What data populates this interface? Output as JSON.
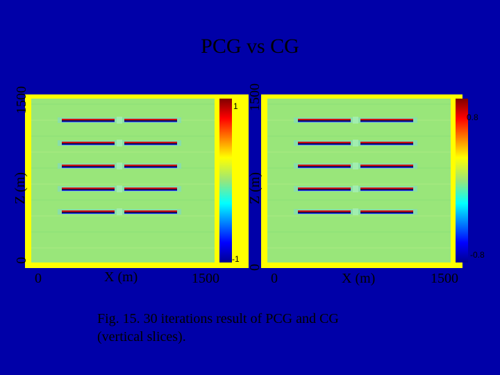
{
  "slide": {
    "title": "PCG vs CG",
    "caption_line1": "Fig. 15. 30 iterations result of PCG and CG",
    "caption_line2": "(vertical slices)."
  },
  "chart_data": [
    {
      "type": "heatmap",
      "title": "",
      "xlabel": "X (m)",
      "ylabel": "Z (m)",
      "xticks": [
        "0",
        "1500"
      ],
      "yticks": [
        "0",
        "1500"
      ],
      "xlim": [
        0,
        1500
      ],
      "ylim": [
        0,
        1500
      ],
      "colorbar": {
        "min_label": "-1",
        "max_label": "1",
        "min": -1,
        "max": 1
      },
      "reflectors_z_fraction_from_top": [
        0.13,
        0.27,
        0.41,
        0.55,
        0.69
      ],
      "background_value": 0,
      "grid": false
    },
    {
      "type": "heatmap",
      "title": "",
      "xlabel": "X (m)",
      "ylabel": "Z (m)",
      "xticks": [
        "0",
        "1500"
      ],
      "yticks": [
        "0",
        "1500"
      ],
      "xlim": [
        0,
        1500
      ],
      "ylim": [
        0,
        1500
      ],
      "colorbar": {
        "min_label": "-0.8",
        "max_label": "0.8",
        "min": -0.8,
        "max": 0.8
      },
      "reflectors_z_fraction_from_top": [
        0.13,
        0.27,
        0.41,
        0.55,
        0.69
      ],
      "background_value": 0,
      "grid": false
    }
  ],
  "colors": {
    "background": "#0000a8",
    "frame": "#ffff00",
    "field": "#99e67a"
  }
}
